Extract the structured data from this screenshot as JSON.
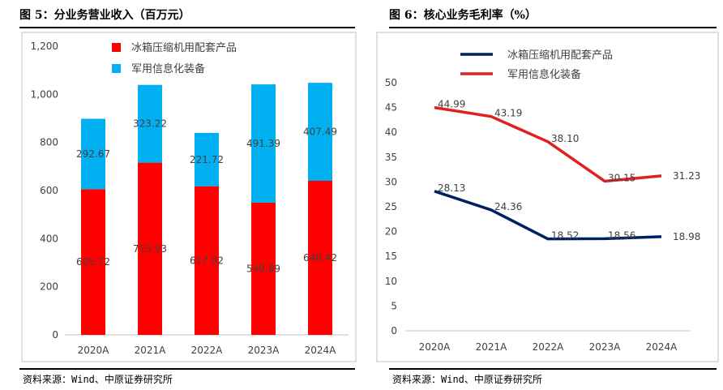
{
  "colors": {
    "fridge_bar": "#ff0000",
    "military_bar": "#00b0f0",
    "fridge_line": "#002060",
    "military_line": "#e02020",
    "axis_text": "#404040",
    "frame": "#c0c0c0"
  },
  "left": {
    "title": "图 5：分业务营业收入（百万元）",
    "source": "资料来源：Wind、中原证券研究所"
  },
  "right": {
    "title": "图 6：核心业务毛利率（%）",
    "source": "资料来源：Wind、中原证券研究所"
  },
  "chart_data": [
    {
      "type": "bar",
      "stacked": true,
      "categories": [
        "2020A",
        "2021A",
        "2022A",
        "2023A",
        "2024A"
      ],
      "series": [
        {
          "name": "冰箱压缩机用配套产品",
          "values": [
            605.72,
            715.93,
            617.92,
            549.89,
            640.42
          ],
          "labels": [
            "605.72",
            "715.93",
            "617.92",
            "549.89",
            "640.42"
          ]
        },
        {
          "name": "军用信息化装备",
          "values": [
            292.67,
            323.22,
            221.72,
            491.39,
            407.49
          ],
          "labels": [
            "292.67",
            "323.22",
            "221.72",
            "491.39",
            "407.49"
          ]
        }
      ],
      "ylim": [
        0,
        1200
      ],
      "yticks": [
        0,
        200,
        400,
        600,
        800,
        1000,
        1200
      ],
      "ytick_labels": [
        "0",
        "200",
        "400",
        "600",
        "800",
        "1,000",
        "1,200"
      ],
      "legend": "top",
      "grid": false
    },
    {
      "type": "line",
      "categories": [
        "2020A",
        "2021A",
        "2022A",
        "2023A",
        "2024A"
      ],
      "series": [
        {
          "name": "冰箱压缩机用配套产品",
          "values": [
            28.13,
            24.36,
            18.52,
            18.56,
            18.98
          ],
          "labels": [
            "28.13",
            "24.36",
            "18.52",
            "18.56",
            "18.98"
          ]
        },
        {
          "name": "军用信息化装备",
          "values": [
            44.99,
            43.19,
            38.1,
            30.15,
            31.23
          ],
          "labels": [
            "44.99",
            "43.19",
            "38.10",
            "30.15",
            "31.23"
          ]
        }
      ],
      "ylim": [
        0,
        50
      ],
      "yticks": [
        0,
        5,
        10,
        15,
        20,
        25,
        30,
        35,
        40,
        45,
        50
      ],
      "ytick_labels": [
        "0",
        "5",
        "10",
        "15",
        "20",
        "25",
        "30",
        "35",
        "40",
        "45",
        "50"
      ],
      "legend": "top",
      "grid": false
    }
  ]
}
